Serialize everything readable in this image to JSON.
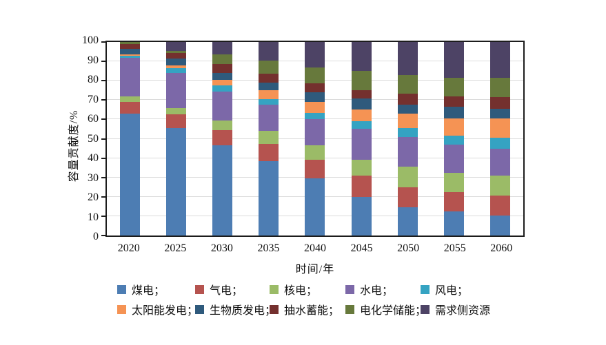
{
  "chart_data": {
    "type": "bar",
    "stacked": true,
    "stack_total": 100,
    "title": "",
    "xlabel": "时间/年",
    "ylabel": "容量贡献度/%",
    "ylim": [
      0,
      100
    ],
    "yticks": [
      0,
      10,
      20,
      30,
      40,
      50,
      60,
      70,
      80,
      90,
      100
    ],
    "grid": "horizontal",
    "gridline_color": "#dcdcdc",
    "legend_position": "bottom",
    "legend_rows": 2,
    "categories": [
      "2020",
      "2025",
      "2030",
      "2035",
      "2040",
      "2045",
      "2050",
      "2055",
      "2060"
    ],
    "series": [
      {
        "key": "coal",
        "name": "煤电",
        "legend_label": "煤电；",
        "color": "#4d7db3",
        "values": [
          63,
          55.5,
          46.5,
          38.5,
          29.5,
          20,
          14.5,
          12.5,
          10.5
        ]
      },
      {
        "key": "gas",
        "name": "气电",
        "legend_label": "气电；",
        "color": "#b5534f",
        "values": [
          6,
          7,
          8,
          9,
          9.5,
          11,
          10.5,
          10,
          10
        ]
      },
      {
        "key": "nuclear",
        "name": "核电",
        "legend_label": "核电；",
        "color": "#9bbb67",
        "values": [
          3,
          3.5,
          5,
          6.5,
          7.5,
          8,
          10.5,
          10,
          10.5
        ]
      },
      {
        "key": "hydro",
        "name": "水电",
        "legend_label": "水电；",
        "color": "#7c68a8",
        "values": [
          20,
          18,
          15,
          13.5,
          13.5,
          16,
          15.5,
          14.5,
          14
        ]
      },
      {
        "key": "wind",
        "name": "风电",
        "legend_label": "风电；",
        "color": "#35a3c2",
        "values": [
          1,
          2.5,
          3,
          3,
          3.5,
          4,
          4.5,
          4.5,
          5.5
        ]
      },
      {
        "key": "solar",
        "name": "太阳能发电",
        "legend_label": "太阳能发电；",
        "color": "#f59354",
        "values": [
          0.5,
          1.5,
          3,
          4.5,
          5.5,
          6,
          7.5,
          9,
          10
        ]
      },
      {
        "key": "biomass",
        "name": "生物质发电",
        "legend_label": "生物质发电；",
        "color": "#2f5a7c",
        "values": [
          3,
          3.5,
          3.5,
          4,
          5,
          6,
          4.5,
          6,
          5
        ]
      },
      {
        "key": "pumped-storage",
        "name": "抽水蓄能",
        "legend_label": "抽水蓄能；",
        "color": "#74302e",
        "values": [
          2.5,
          3,
          4.5,
          4.5,
          4.5,
          4,
          6,
          5.5,
          6
        ]
      },
      {
        "key": "electrochemical-storage",
        "name": "电化学储能",
        "legend_label": "电化学储能；",
        "color": "#67793c",
        "values": [
          1,
          1,
          5,
          7,
          8.5,
          10,
          9.5,
          9.5,
          10
        ]
      },
      {
        "key": "demand-side",
        "name": "需求侧资源",
        "legend_label": "需求侧资源",
        "color": "#4d4365",
        "values": [
          0,
          4.5,
          6.5,
          9.5,
          13,
          15,
          17,
          18.5,
          18.5
        ]
      }
    ]
  }
}
